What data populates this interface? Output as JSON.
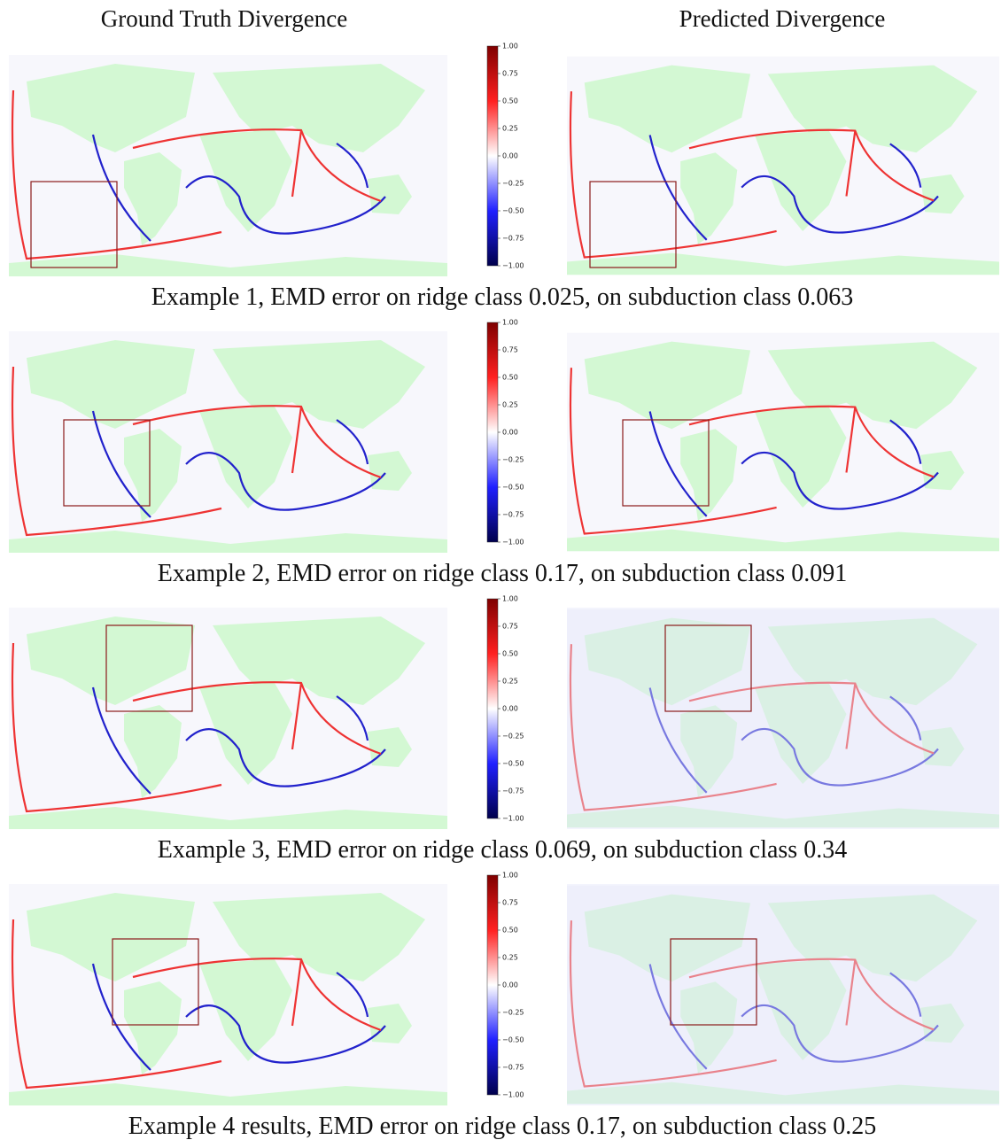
{
  "header": {
    "left_title": "Ground Truth Divergence",
    "right_title": "Predicted Divergence"
  },
  "colorbar": {
    "range": [
      -1,
      1
    ],
    "ticks": [
      {
        "value": 1,
        "label": "1.00"
      },
      {
        "value": 0.75,
        "label": "0.75"
      },
      {
        "value": 0.5,
        "label": "0.50"
      },
      {
        "value": 0.25,
        "label": "0.25"
      },
      {
        "value": 0,
        "label": "0.00"
      },
      {
        "value": -0.25,
        "label": "−0.25"
      },
      {
        "value": -0.5,
        "label": "−0.50"
      },
      {
        "value": -0.75,
        "label": "−0.75"
      },
      {
        "value": -1,
        "label": "−1.00"
      }
    ]
  },
  "examples": [
    {
      "caption": "Example 1, EMD error on ridge class 0.025, on subduction class 0.063"
    },
    {
      "caption": "Example 2, EMD error on ridge class 0.17, on subduction class 0.091"
    },
    {
      "caption": "Example 3, EMD error on ridge class 0.069, on subduction class 0.34"
    },
    {
      "caption": "Example 4 results, EMD error on ridge class 0.17, on subduction class 0.25"
    }
  ]
}
